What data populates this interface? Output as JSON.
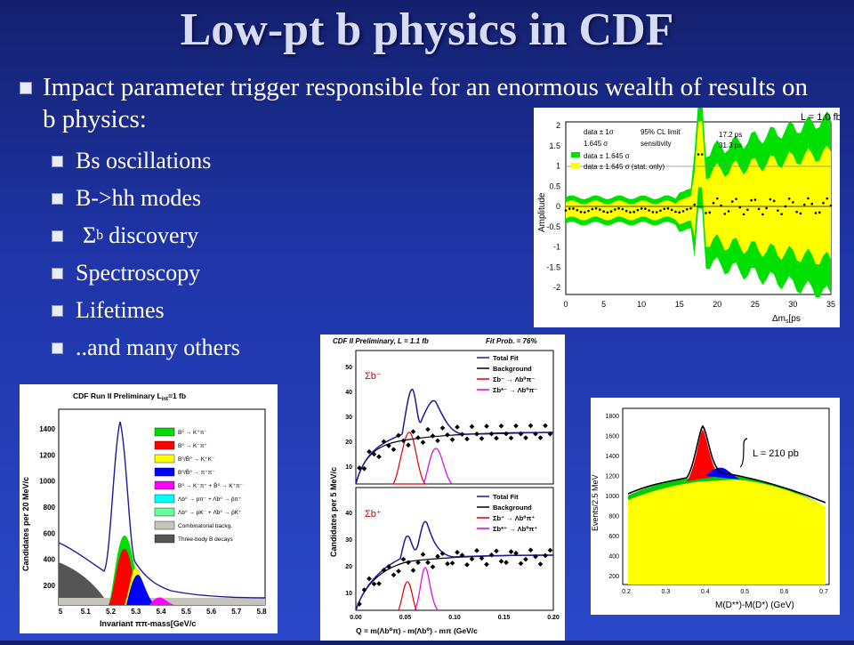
{
  "slide": {
    "title": "Low-pt b physics in CDF",
    "main_bullet": "Impact parameter trigger responsible for an enormous wealth of results on b physics:",
    "sub_bullets": [
      "Bs oscillations",
      "B->hh modes",
      "discovery",
      "Spectroscopy",
      "Lifetimes",
      "..and many others"
    ],
    "sigma_b": "Σ",
    "sigma_b_sub": "b"
  },
  "colors": {
    "background": "#1f35a8",
    "title": "#d7dcf4",
    "green_band": "#00e000",
    "yellow_band": "#ffff00",
    "red": "#ff0000",
    "blue": "#0000ff",
    "magenta": "#ff00ff"
  },
  "plots": {
    "bs": {
      "lumi": "L = 1.0 fb",
      "ylabel": "Amplitude",
      "xlabel": "Δm",
      "xlabel_sub": "s",
      "xlabel_unit": "[ps",
      "legend": [
        "data ± 1σ",
        "1.645 σ",
        "95% CL limit",
        "sensitivity",
        "data ± 1.645 σ",
        "data ± 1.645 σ (stat. only)"
      ],
      "limit_text": "17.2 ps",
      "sens_text": "31.3 ps",
      "xticks": [
        "0",
        "5",
        "10",
        "15",
        "20",
        "25",
        "30",
        "35"
      ],
      "yticks": [
        "2",
        "1.5",
        "1",
        "0.5",
        "0",
        "-0.5",
        "-1",
        "-1.5",
        "-2"
      ]
    },
    "bhh": {
      "header": "CDF Run II  Preliminary L",
      "header_sub": "int",
      "header_end": "=1 fb",
      "ylabel": "Candidates per 20 MeV/c",
      "xlabel": "Invariant ππ-mass[GeV/c",
      "xticks": [
        "5",
        "5.1",
        "5.2",
        "5.3",
        "5.4",
        "5.5",
        "5.6",
        "5.7",
        "5.8"
      ],
      "yticks": [
        "1400",
        "1200",
        "1000",
        "800",
        "600",
        "400",
        "200"
      ],
      "legend": [
        "B⁰ → K⁺π⁻",
        "B⁰ → K⁻π⁺",
        "B⁰/B̄⁰ → K⁺K⁻",
        "B⁰/B̄⁰ → π⁺π⁻",
        "B⁰ → K⁻π⁺ + B̄⁰ → K⁺π⁻",
        "Λb⁰ → pπ⁻ + Λ̄b⁰ → p̄π⁺",
        "Λb⁰ → pK⁻ + Λ̄b⁰ → p̄K⁺",
        "Combinatorial backg.",
        "Three-body B decays"
      ],
      "legend_colors": [
        "#00dd00",
        "#ff0000",
        "#ffff00",
        "#0000ff",
        "#ff00ff",
        "#00ffff",
        "#66ff99",
        "#c8c4bc",
        "#555555"
      ]
    },
    "sigma": {
      "header": "CDF II Preliminary, L = 1.1 fb",
      "fitprob": "Fit Prob. = 76%",
      "ylabel": "Candidates per 5 MeV/c",
      "xlabel": "Q = m(Λb⁰π) - m(Λb⁰) - mπ  (GeV/c",
      "legend": [
        "Total Fit",
        "Background",
        "Σb⁻ → Λb⁰π⁻",
        "Σb*⁻ → Λb⁰π⁻"
      ],
      "legend2": [
        "Total Fit",
        "Background",
        "Σb⁺ → Λb⁰π⁺",
        "Σb*⁺ → Λb⁰π⁺"
      ],
      "label_top": "Σb⁻",
      "label_bot": "Σb⁺",
      "yticks_top": [
        "50",
        "40",
        "30",
        "20",
        "10"
      ],
      "yticks_bot": [
        "40",
        "30",
        "20",
        "10"
      ],
      "xticks": [
        "0.00",
        "0.05",
        "0.10",
        "0.15",
        "0.20"
      ]
    },
    "dstar": {
      "lumi": "L = 210 pb",
      "ylabel": "Events/2.5 MeV",
      "xlabel": "M(D**)-M(D*) (GeV)",
      "yticks": [
        "1800",
        "1600",
        "1400",
        "1200",
        "1000",
        "800",
        "600",
        "400",
        "200"
      ],
      "xticks": [
        "0.2",
        "0.3",
        "0.4",
        "0.5",
        "0.6",
        "0.7"
      ]
    }
  }
}
